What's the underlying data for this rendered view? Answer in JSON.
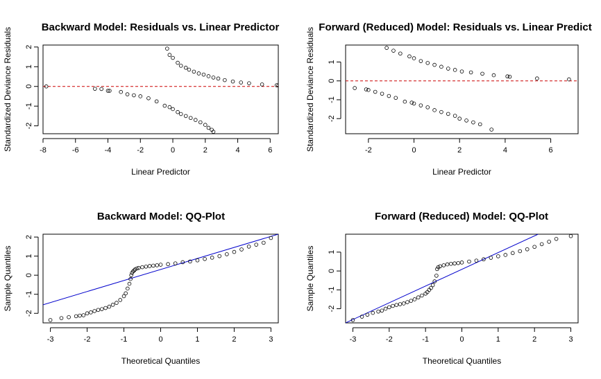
{
  "chart_data": [
    {
      "type": "scatter",
      "title": "Backward Model: Residuals vs. Linear Predictor",
      "xlabel": "Linear Predictor",
      "ylabel": "Standardized Deviance Residuals",
      "xlim": [
        -8,
        6.5
      ],
      "ylim": [
        -2.4,
        2.1
      ],
      "xticks": [
        -8,
        -6,
        -4,
        -2,
        0,
        2,
        4,
        6
      ],
      "yticks": [
        -2,
        -1,
        0,
        1,
        2
      ],
      "reference_line": {
        "type": "hline",
        "y": 0,
        "color": "#cc0000",
        "style": "dashed"
      },
      "series": [
        {
          "branch": "positive",
          "x": [
            -0.35,
            -0.2,
            0,
            0.3,
            0.5,
            0.8,
            1.0,
            1.3,
            1.6,
            1.9,
            2.2,
            2.5,
            2.8,
            3.2,
            3.7,
            4.2,
            4.7,
            5.5,
            6.4,
            6.5
          ],
          "y": [
            1.92,
            1.6,
            1.45,
            1.2,
            1.05,
            0.95,
            0.85,
            0.75,
            0.66,
            0.6,
            0.52,
            0.45,
            0.4,
            0.32,
            0.25,
            0.2,
            0.16,
            0.1,
            0.06,
            0.05
          ]
        },
        {
          "branch": "negative",
          "x": [
            -7.8,
            -4.8,
            -4.4,
            -4.0,
            -3.9,
            -3.2,
            -2.8,
            -2.4,
            -2.0,
            -1.5,
            -1.0,
            -0.5,
            -0.2,
            0,
            0.3,
            0.5,
            0.8,
            1.1,
            1.4,
            1.7,
            2.0,
            2.2,
            2.4,
            2.5
          ],
          "y": [
            0,
            -0.12,
            -0.13,
            -0.22,
            -0.22,
            -0.28,
            -0.4,
            -0.45,
            -0.5,
            -0.6,
            -0.76,
            -0.98,
            -1.05,
            -1.15,
            -1.3,
            -1.4,
            -1.5,
            -1.6,
            -1.7,
            -1.82,
            -1.95,
            -2.1,
            -2.2,
            -2.3
          ]
        }
      ]
    },
    {
      "type": "scatter",
      "title": "Forward (Reduced) Model: Residuals vs. Linear Predict",
      "xlabel": "Linear Predictor",
      "ylabel": "Standardized Deviance Residuals",
      "xlim": [
        -3,
        7.2
      ],
      "ylim": [
        -2.8,
        1.9
      ],
      "xticks": [
        -2,
        0,
        2,
        4,
        6
      ],
      "yticks": [
        -2,
        -1,
        0,
        1
      ],
      "reference_line": {
        "type": "hline",
        "y": 0,
        "color": "#cc0000",
        "style": "dashed"
      },
      "series": [
        {
          "branch": "positive",
          "x": [
            -1.2,
            -0.9,
            -0.6,
            -0.2,
            0,
            0.3,
            0.6,
            0.9,
            1.2,
            1.5,
            1.8,
            2.1,
            2.5,
            3.0,
            3.5,
            4.1,
            4.2,
            5.4,
            6.8
          ],
          "y": [
            1.75,
            1.6,
            1.45,
            1.3,
            1.2,
            1.05,
            0.95,
            0.85,
            0.75,
            0.65,
            0.58,
            0.5,
            0.45,
            0.38,
            0.3,
            0.24,
            0.22,
            0.13,
            0.08
          ]
        },
        {
          "branch": "negative",
          "x": [
            -2.6,
            -2.1,
            -2.0,
            -1.7,
            -1.4,
            -1.1,
            -0.8,
            -0.4,
            -0.1,
            0,
            0.3,
            0.6,
            0.9,
            1.2,
            1.5,
            1.8,
            2.0,
            2.3,
            2.6,
            2.9,
            3.4
          ],
          "y": [
            -0.38,
            -0.45,
            -0.48,
            -0.58,
            -0.68,
            -0.8,
            -0.9,
            -1.1,
            -1.15,
            -1.2,
            -1.3,
            -1.4,
            -1.55,
            -1.65,
            -1.75,
            -1.85,
            -2.0,
            -2.1,
            -2.2,
            -2.3,
            -2.58
          ]
        }
      ]
    },
    {
      "type": "scatter",
      "title": "Backward Model: QQ-Plot",
      "xlabel": "Theoretical Quantiles",
      "ylabel": "Sample Quantiles",
      "xlim": [
        -3.2,
        3.2
      ],
      "ylim": [
        -2.5,
        2.15
      ],
      "xticks": [
        -3,
        -2,
        -1,
        0,
        1,
        2,
        3
      ],
      "yticks": [
        -2,
        -1,
        0,
        1,
        2
      ],
      "reference_line": {
        "type": "line",
        "x": [
          -3.2,
          3.2
        ],
        "y": [
          -1.55,
          2.15
        ],
        "color": "#0000cc",
        "style": "solid"
      },
      "series": [
        {
          "x": [
            -3.0,
            -2.7,
            -2.5,
            -2.3,
            -2.2,
            -2.1,
            -2.0,
            -1.9,
            -1.8,
            -1.7,
            -1.6,
            -1.5,
            -1.4,
            -1.3,
            -1.2,
            -1.1,
            -1.0,
            -0.95,
            -0.9,
            -0.85,
            -0.82,
            -0.8,
            -0.78,
            -0.75,
            -0.72,
            -0.7,
            -0.65,
            -0.6,
            -0.5,
            -0.4,
            -0.3,
            -0.2,
            -0.1,
            0,
            0.2,
            0.4,
            0.6,
            0.8,
            1.0,
            1.2,
            1.4,
            1.6,
            1.8,
            2.0,
            2.2,
            2.4,
            2.6,
            2.8,
            3.0
          ],
          "y": [
            -2.35,
            -2.25,
            -2.2,
            -2.15,
            -2.12,
            -2.1,
            -2.0,
            -1.95,
            -1.88,
            -1.82,
            -1.78,
            -1.72,
            -1.65,
            -1.55,
            -1.45,
            -1.3,
            -1.1,
            -0.95,
            -0.7,
            -0.45,
            -0.2,
            0,
            0.12,
            0.2,
            0.25,
            0.3,
            0.35,
            0.38,
            0.42,
            0.45,
            0.48,
            0.5,
            0.52,
            0.55,
            0.58,
            0.62,
            0.68,
            0.72,
            0.78,
            0.85,
            0.92,
            1.0,
            1.1,
            1.22,
            1.35,
            1.5,
            1.6,
            1.7,
            1.95
          ]
        }
      ]
    },
    {
      "type": "scatter",
      "title": "Forward (Reduced) Model: QQ-Plot",
      "xlabel": "Theoretical Quantiles",
      "ylabel": "Sample Quantiles",
      "xlim": [
        -3.2,
        3.2
      ],
      "ylim": [
        -2.75,
        1.95
      ],
      "xticks": [
        -3,
        -2,
        -1,
        0,
        1,
        2,
        3
      ],
      "yticks": [
        -2,
        -1,
        0,
        1
      ],
      "reference_line": {
        "type": "line",
        "x": [
          -3.2,
          2.1
        ],
        "y": [
          -2.75,
          1.95
        ],
        "color": "#0000cc",
        "style": "solid"
      },
      "series": [
        {
          "x": [
            -3.0,
            -2.75,
            -2.6,
            -2.45,
            -2.3,
            -2.2,
            -2.1,
            -2.0,
            -1.9,
            -1.8,
            -1.7,
            -1.6,
            -1.5,
            -1.4,
            -1.3,
            -1.2,
            -1.1,
            -1.0,
            -0.95,
            -0.9,
            -0.85,
            -0.8,
            -0.75,
            -0.7,
            -0.68,
            -0.65,
            -0.6,
            -0.5,
            -0.4,
            -0.3,
            -0.2,
            -0.1,
            0,
            0.2,
            0.4,
            0.6,
            0.8,
            1.0,
            1.2,
            1.4,
            1.6,
            1.8,
            2.0,
            2.2,
            2.4,
            2.6,
            3.0
          ],
          "y": [
            -2.6,
            -2.42,
            -2.32,
            -2.22,
            -2.15,
            -2.1,
            -2.0,
            -1.92,
            -1.85,
            -1.8,
            -1.76,
            -1.72,
            -1.65,
            -1.58,
            -1.5,
            -1.4,
            -1.3,
            -1.2,
            -1.12,
            -1.0,
            -0.9,
            -0.75,
            -0.55,
            -0.25,
            0.1,
            0.2,
            0.25,
            0.3,
            0.35,
            0.38,
            0.4,
            0.42,
            0.45,
            0.5,
            0.55,
            0.62,
            0.7,
            0.78,
            0.85,
            0.95,
            1.05,
            1.15,
            1.28,
            1.42,
            1.55,
            1.7,
            1.85
          ]
        }
      ]
    }
  ]
}
